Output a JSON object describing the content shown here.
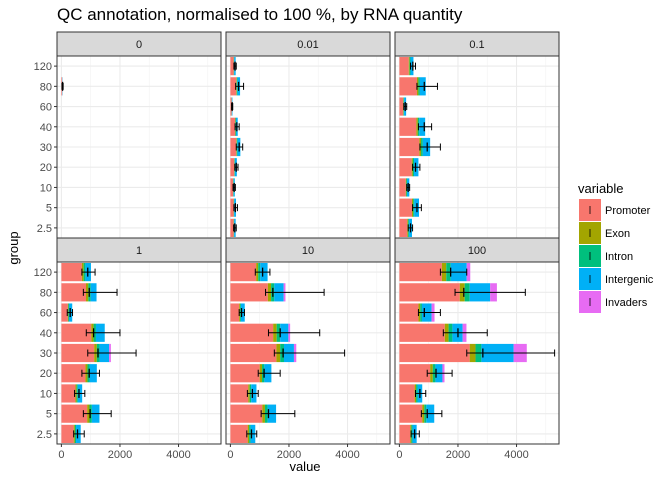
{
  "chart_data": {
    "type": "bar",
    "orientation": "horizontal",
    "stacked": true,
    "title": "QC annotation, normalised to 100 %, by RNA quantity",
    "xlabel": "value",
    "ylabel": "group",
    "xlim": [
      -150,
      5450
    ],
    "xticks": [
      0,
      2000,
      4000
    ],
    "grid": true,
    "legend_position": "right",
    "legend": {
      "title": "variable",
      "entries": [
        {
          "name": "Promoter",
          "color": "#F8766D"
        },
        {
          "name": "Exon",
          "color": "#A3A500"
        },
        {
          "name": "Intron",
          "color": "#00BF7D"
        },
        {
          "name": "Intergenic",
          "color": "#00B0F6"
        },
        {
          "name": "Invaders",
          "color": "#E76BF3"
        }
      ]
    },
    "categories": [
      "120",
      "80",
      "60",
      "40",
      "30",
      "20",
      "10",
      "5",
      "2.5"
    ],
    "panels": [
      {
        "label": "0",
        "stacks": [
          [
            0,
            0,
            0,
            0,
            0
          ],
          [
            30,
            0,
            0,
            10,
            0
          ],
          [
            0,
            0,
            0,
            0,
            0
          ],
          [
            0,
            0,
            0,
            0,
            0
          ],
          [
            0,
            0,
            0,
            0,
            0
          ],
          [
            0,
            0,
            0,
            0,
            0
          ],
          [
            0,
            0,
            0,
            0,
            0
          ],
          [
            0,
            0,
            0,
            0,
            0
          ],
          [
            0,
            0,
            0,
            0,
            0
          ]
        ],
        "errors": [
          null,
          [
            40,
            20,
            60
          ],
          null,
          null,
          null,
          null,
          null,
          null,
          null
        ]
      },
      {
        "label": "0.01",
        "stacks": [
          [
            110,
            10,
            10,
            50,
            0
          ],
          [
            200,
            20,
            20,
            90,
            0
          ],
          [
            40,
            5,
            5,
            20,
            0
          ],
          [
            160,
            15,
            15,
            60,
            0
          ],
          [
            200,
            20,
            20,
            100,
            0
          ],
          [
            130,
            10,
            10,
            70,
            0
          ],
          [
            90,
            10,
            10,
            40,
            0
          ],
          [
            110,
            10,
            10,
            60,
            0
          ],
          [
            110,
            10,
            10,
            50,
            0
          ]
        ],
        "errors": [
          [
            160,
            120,
            200
          ],
          [
            280,
            180,
            450
          ],
          [
            60,
            40,
            80
          ],
          [
            220,
            160,
            300
          ],
          [
            300,
            200,
            420
          ],
          [
            200,
            150,
            260
          ],
          [
            130,
            90,
            170
          ],
          [
            170,
            120,
            240
          ],
          [
            150,
            110,
            200
          ]
        ]
      },
      {
        "label": "0.1",
        "stacks": [
          [
            320,
            30,
            30,
            100,
            0
          ],
          [
            600,
            50,
            50,
            200,
            0
          ],
          [
            130,
            15,
            15,
            70,
            0
          ],
          [
            580,
            50,
            50,
            200,
            0
          ],
          [
            680,
            60,
            60,
            250,
            0
          ],
          [
            420,
            40,
            40,
            150,
            0
          ],
          [
            220,
            20,
            20,
            80,
            0
          ],
          [
            430,
            40,
            40,
            160,
            0
          ],
          [
            270,
            30,
            30,
            100,
            0
          ]
        ],
        "errors": [
          [
            460,
            380,
            550
          ],
          [
            850,
            600,
            1300
          ],
          [
            200,
            150,
            250
          ],
          [
            850,
            650,
            1100
          ],
          [
            950,
            700,
            1400
          ],
          [
            550,
            450,
            700
          ],
          [
            300,
            250,
            350
          ],
          [
            600,
            450,
            750
          ],
          [
            380,
            300,
            450
          ]
        ]
      },
      {
        "label": "1",
        "stacks": [
          [
            700,
            60,
            60,
            190,
            0
          ],
          [
            840,
            80,
            80,
            200,
            0
          ],
          [
            220,
            20,
            20,
            110,
            0
          ],
          [
            1020,
            80,
            80,
            300,
            0
          ],
          [
            1120,
            90,
            90,
            330,
            60
          ],
          [
            820,
            70,
            70,
            250,
            0
          ],
          [
            480,
            40,
            40,
            150,
            0
          ],
          [
            880,
            80,
            80,
            260,
            0
          ],
          [
            420,
            40,
            40,
            160,
            0
          ]
        ],
        "errors": [
          [
            900,
            700,
            1150
          ],
          [
            950,
            750,
            1900
          ],
          [
            300,
            200,
            380
          ],
          [
            1100,
            850,
            2000
          ],
          [
            1250,
            900,
            2550
          ],
          [
            950,
            700,
            1300
          ],
          [
            600,
            450,
            800
          ],
          [
            980,
            750,
            1700
          ],
          [
            550,
            420,
            780
          ]
        ]
      },
      {
        "label": "10",
        "stacks": [
          [
            880,
            70,
            70,
            250,
            0
          ],
          [
            1280,
            110,
            110,
            320,
            60
          ],
          [
            300,
            30,
            30,
            130,
            0
          ],
          [
            1460,
            120,
            120,
            280,
            60
          ],
          [
            1570,
            130,
            130,
            340,
            80
          ],
          [
            1000,
            80,
            80,
            240,
            0
          ],
          [
            610,
            50,
            50,
            180,
            0
          ],
          [
            1090,
            90,
            90,
            290,
            0
          ],
          [
            590,
            50,
            50,
            160,
            0
          ]
        ],
        "errors": [
          [
            1100,
            850,
            1350
          ],
          [
            1450,
            1200,
            3200
          ],
          [
            380,
            300,
            480
          ],
          [
            1700,
            1300,
            3050
          ],
          [
            1800,
            1500,
            3900
          ],
          [
            1150,
            950,
            1700
          ],
          [
            750,
            580,
            950
          ],
          [
            1300,
            1050,
            2200
          ],
          [
            720,
            560,
            900
          ]
        ]
      },
      {
        "label": "100",
        "stacks": [
          [
            1450,
            150,
            150,
            550,
            120
          ],
          [
            2060,
            170,
            170,
            700,
            230
          ],
          [
            650,
            60,
            60,
            330,
            100
          ],
          [
            1550,
            130,
            130,
            350,
            130
          ],
          [
            2400,
            200,
            200,
            1100,
            450
          ],
          [
            1050,
            90,
            90,
            240,
            70
          ],
          [
            520,
            50,
            50,
            160,
            0
          ],
          [
            780,
            70,
            70,
            270,
            0
          ],
          [
            370,
            40,
            40,
            140,
            0
          ]
        ],
        "errors": [
          [
            1750,
            1400,
            2300
          ],
          [
            2200,
            1900,
            4300
          ],
          [
            850,
            650,
            1400
          ],
          [
            2000,
            1500,
            3000
          ],
          [
            2850,
            2300,
            5300
          ],
          [
            1250,
            950,
            1800
          ],
          [
            700,
            550,
            900
          ],
          [
            950,
            750,
            1450
          ],
          [
            520,
            400,
            680
          ]
        ]
      }
    ]
  }
}
